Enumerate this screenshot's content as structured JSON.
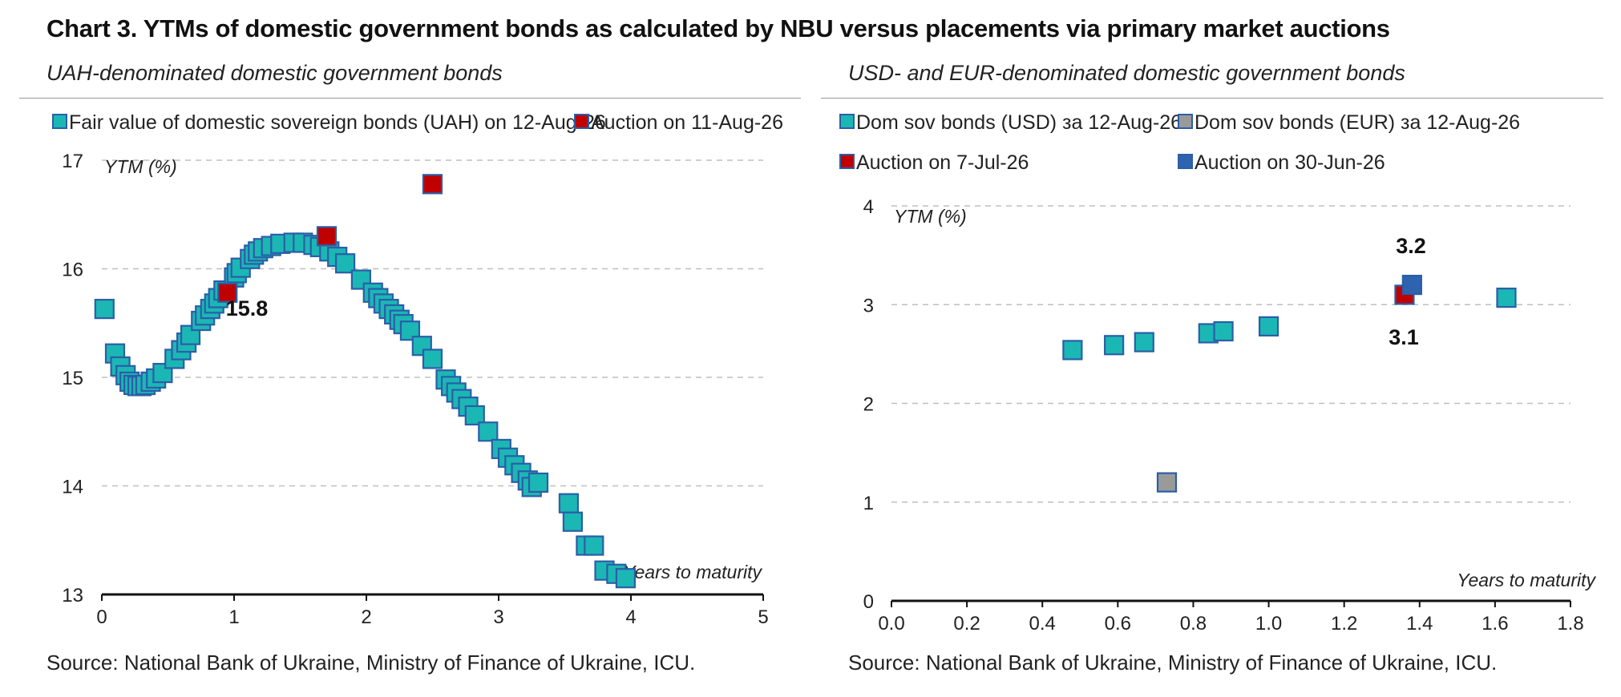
{
  "title": "Chart 3. YTMs of domestic government bonds as calculated by NBU versus placements via primary market auctions",
  "source_text": "Source: National Bank of Ukraine, Ministry of Finance of Ukraine, ICU.",
  "colors": {
    "teal": "#1BB7B5",
    "teal_border": "#2B5EA7",
    "red": "#C00000",
    "gray": "#9A9A9A",
    "blue": "#2E63B0",
    "grid": "#BFBFBF"
  },
  "chart_data": [
    {
      "type": "scatter",
      "subtitle": "UAH-denominated domestic government bonds",
      "ylabel": "YTM (%)",
      "xlabel": "Years to maturity",
      "xlim": [
        0,
        5
      ],
      "ylim": [
        13,
        17
      ],
      "xticks": [
        "0",
        "1",
        "2",
        "3",
        "4",
        "5"
      ],
      "yticks": [
        "13",
        "14",
        "15",
        "16",
        "17"
      ],
      "grid": "horizontal dashed",
      "legend_position": "top",
      "series": [
        {
          "name": "Fair value of domestic sovereign bonds (UAH) on 12-Aug-26",
          "points": [
            [
              0.02,
              15.63
            ],
            [
              0.1,
              15.22
            ],
            [
              0.14,
              15.1
            ],
            [
              0.18,
              15.02
            ],
            [
              0.21,
              14.96
            ],
            [
              0.24,
              14.93
            ],
            [
              0.27,
              14.92
            ],
            [
              0.3,
              14.92
            ],
            [
              0.33,
              14.93
            ],
            [
              0.37,
              14.96
            ],
            [
              0.41,
              14.99
            ],
            [
              0.46,
              15.04
            ],
            [
              0.55,
              15.17
            ],
            [
              0.6,
              15.25
            ],
            [
              0.64,
              15.32
            ],
            [
              0.67,
              15.39
            ],
            [
              0.75,
              15.52
            ],
            [
              0.78,
              15.57
            ],
            [
              0.82,
              15.63
            ],
            [
              0.85,
              15.68
            ],
            [
              0.88,
              15.73
            ],
            [
              0.92,
              15.8
            ],
            [
              1.0,
              15.92
            ],
            [
              1.02,
              15.96
            ],
            [
              1.05,
              16.01
            ],
            [
              1.12,
              16.09
            ],
            [
              1.15,
              16.13
            ],
            [
              1.18,
              16.16
            ],
            [
              1.22,
              16.19
            ],
            [
              1.28,
              16.21
            ],
            [
              1.35,
              16.23
            ],
            [
              1.45,
              16.24
            ],
            [
              1.52,
              16.24
            ],
            [
              1.6,
              16.22
            ],
            [
              1.65,
              16.2
            ],
            [
              1.72,
              16.16
            ],
            [
              1.78,
              16.11
            ],
            [
              1.84,
              16.05
            ],
            [
              1.96,
              15.9
            ],
            [
              2.05,
              15.78
            ],
            [
              2.09,
              15.73
            ],
            [
              2.13,
              15.68
            ],
            [
              2.17,
              15.63
            ],
            [
              2.21,
              15.58
            ],
            [
              2.25,
              15.53
            ],
            [
              2.28,
              15.49
            ],
            [
              2.33,
              15.43
            ],
            [
              2.42,
              15.29
            ],
            [
              2.5,
              15.17
            ],
            [
              2.6,
              14.98
            ],
            [
              2.64,
              14.92
            ],
            [
              2.68,
              14.86
            ],
            [
              2.72,
              14.8
            ],
            [
              2.77,
              14.73
            ],
            [
              2.82,
              14.65
            ],
            [
              2.92,
              14.5
            ],
            [
              3.02,
              14.34
            ],
            [
              3.07,
              14.26
            ],
            [
              3.12,
              14.19
            ],
            [
              3.17,
              14.12
            ],
            [
              3.22,
              14.05
            ],
            [
              3.25,
              13.99
            ],
            [
              3.3,
              14.03
            ],
            [
              3.53,
              13.84
            ],
            [
              3.56,
              13.67
            ],
            [
              3.66,
              13.45
            ],
            [
              3.72,
              13.45
            ],
            [
              3.8,
              13.22
            ],
            [
              3.89,
              13.19
            ],
            [
              3.96,
              13.15
            ]
          ]
        },
        {
          "name": "Auction on 11-Aug-26",
          "points": [
            [
              0.95,
              15.78
            ],
            [
              1.7,
              16.3
            ],
            [
              2.5,
              16.78
            ]
          ]
        }
      ],
      "annotations": [
        {
          "text": "15.8",
          "x": 0.95,
          "y": 15.78
        }
      ]
    },
    {
      "type": "scatter",
      "subtitle": "USD- and EUR-denominated domestic government bonds",
      "ylabel": "YTM (%)",
      "xlabel": "Years to maturity",
      "xlim": [
        0,
        1.8
      ],
      "ylim": [
        0,
        4
      ],
      "xticks": [
        "0.0",
        "0.2",
        "0.4",
        "0.6",
        "0.8",
        "1.0",
        "1.2",
        "1.4",
        "1.6",
        "1.8"
      ],
      "yticks": [
        "0",
        "1",
        "2",
        "3",
        "4"
      ],
      "grid": "horizontal dashed",
      "legend_position": "top",
      "series": [
        {
          "name": "Dom sov bonds (USD) за 12-Aug-26",
          "points": [
            [
              0.48,
              2.54
            ],
            [
              0.59,
              2.59
            ],
            [
              0.67,
              2.62
            ],
            [
              0.84,
              2.71
            ],
            [
              0.88,
              2.73
            ],
            [
              1.0,
              2.78
            ],
            [
              1.63,
              3.07
            ]
          ]
        },
        {
          "name": "Dom sov bonds (EUR) за 12-Aug-26",
          "points": [
            [
              0.73,
              1.2
            ]
          ]
        },
        {
          "name": "Auction on 7-Jul-26",
          "points": [
            [
              1.36,
              3.1
            ]
          ]
        },
        {
          "name": "Auction on 30-Jun-26",
          "points": [
            [
              1.38,
              3.2
            ]
          ]
        }
      ],
      "annotations": [
        {
          "text": "3.2",
          "x": 1.38,
          "y": 3.2
        },
        {
          "text": "3.1",
          "x": 1.36,
          "y": 3.1
        }
      ]
    }
  ]
}
